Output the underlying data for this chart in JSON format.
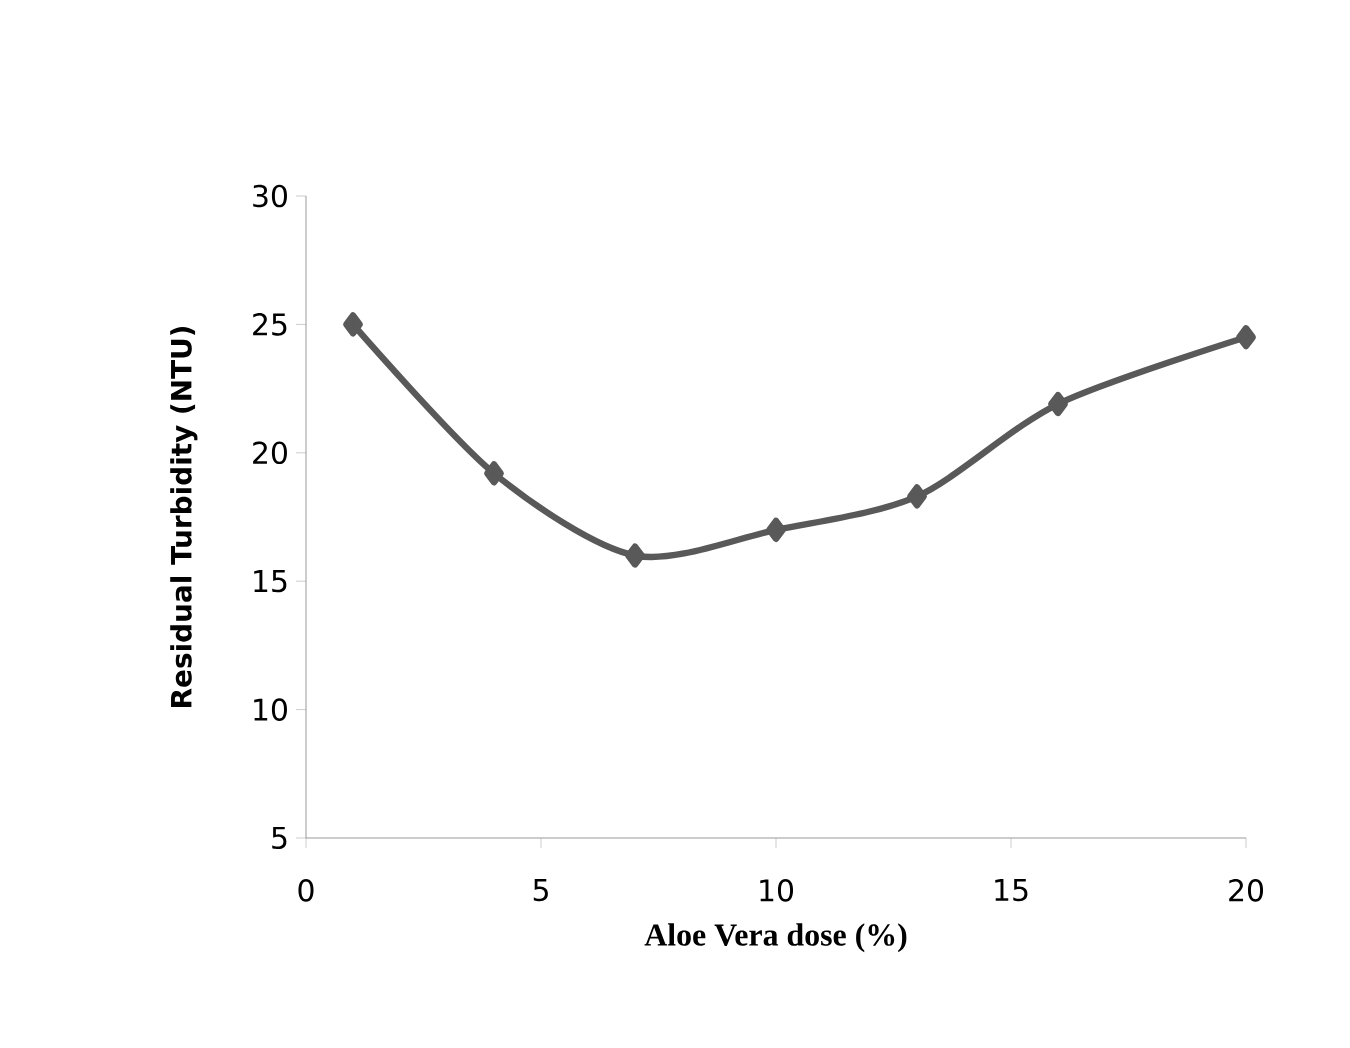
{
  "chart_data": {
    "type": "line",
    "xlabel": "Aloe Vera dose (%)",
    "ylabel": "Residual Turbidity  (NTU)",
    "x": [
      1,
      4,
      7,
      10,
      13,
      16,
      20
    ],
    "series": [
      {
        "color": "#595959",
        "values": [
          25,
          19.2,
          16,
          17,
          18.3,
          21.9,
          24.5
        ]
      }
    ],
    "xlim": [
      0,
      20
    ],
    "xticks": [
      0,
      5,
      10,
      15,
      20
    ],
    "ylim": [
      5,
      30
    ],
    "yticks": [
      5,
      10,
      15,
      20,
      25,
      30
    ],
    "grid": false,
    "marker": "diamond",
    "line_style": "solid"
  }
}
